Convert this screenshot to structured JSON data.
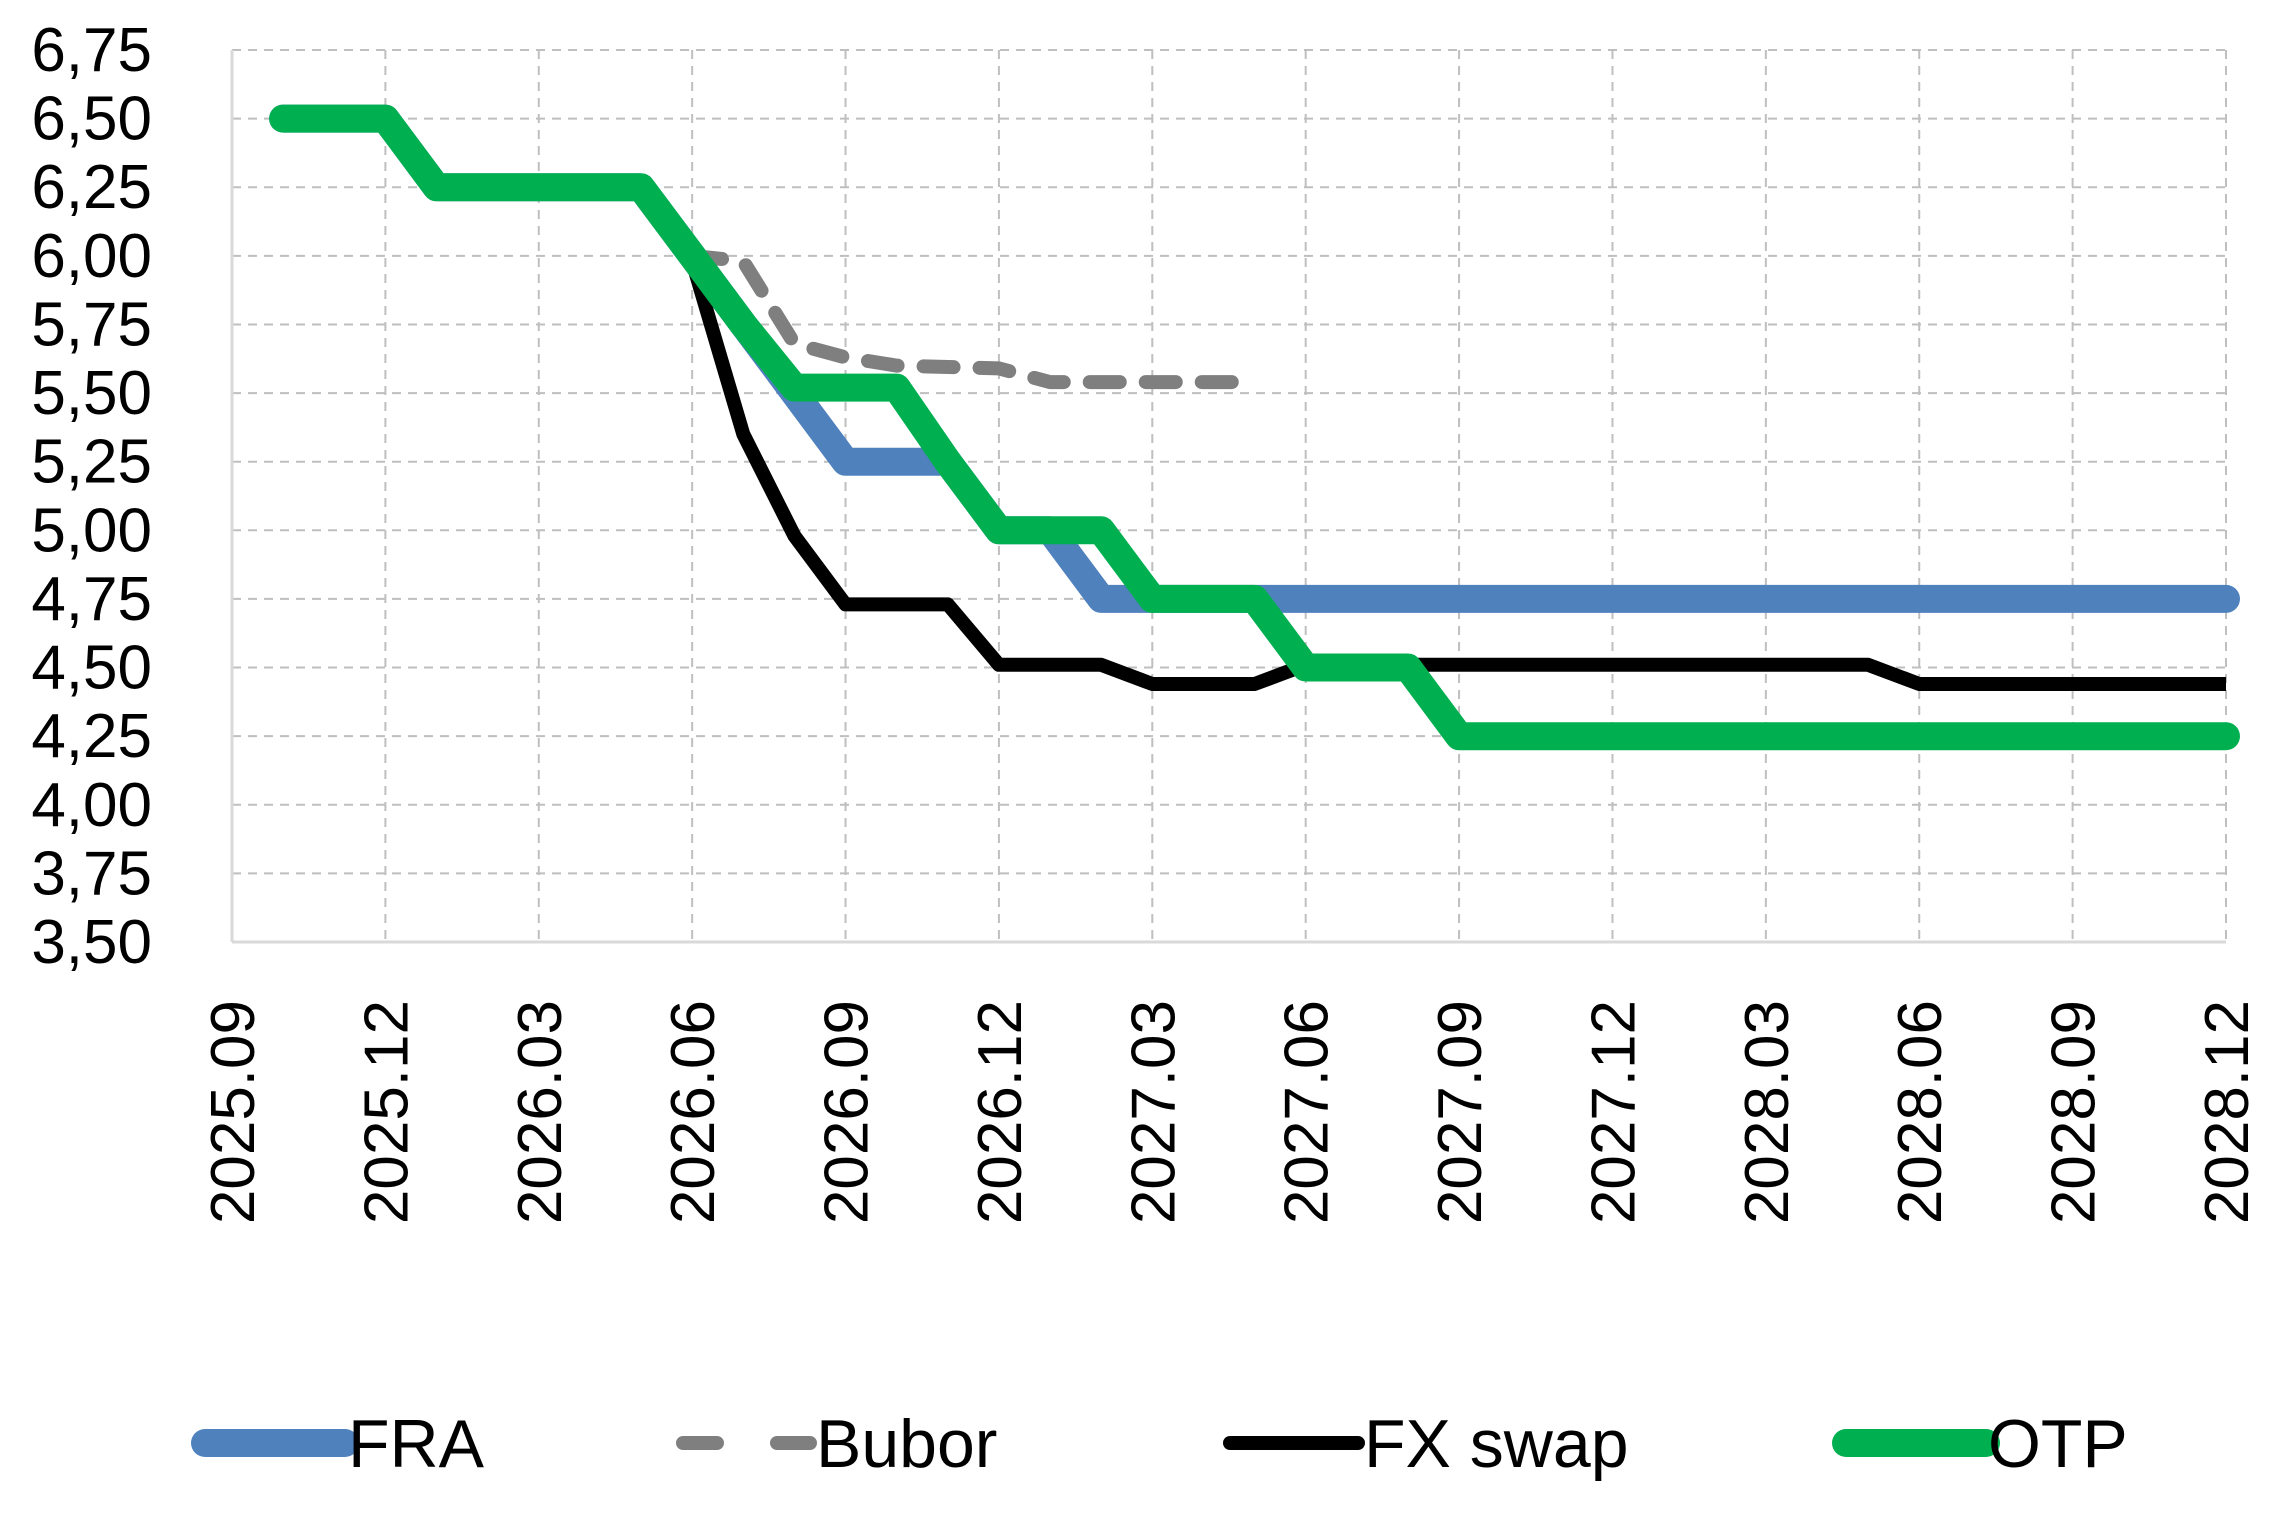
{
  "chart_data": {
    "type": "line",
    "title": "",
    "xlabel": "",
    "ylabel": "",
    "ylim": [
      3.5,
      6.75
    ],
    "y_ticks": [
      "6,75",
      "6,50",
      "6,25",
      "6,00",
      "5,75",
      "5,50",
      "5,25",
      "5,00",
      "4,75",
      "4,50",
      "4,25",
      "4,00",
      "3,75",
      "3,50"
    ],
    "x_ticks": [
      "2025.09",
      "2025.12",
      "2026.03",
      "2026.06",
      "2026.09",
      "2026.12",
      "2027.03",
      "2027.06",
      "2027.09",
      "2027.12",
      "2028.03",
      "2028.06",
      "2028.09",
      "2028.12"
    ],
    "grid": true,
    "legend_position": "bottom",
    "series": [
      {
        "name": "FRA",
        "color": "#4F81BD",
        "style": "solid-thick",
        "points": [
          [
            "2025.10",
            6.5
          ],
          [
            "2025.12",
            6.5
          ],
          [
            "2026.01",
            6.25
          ],
          [
            "2026.02",
            6.25
          ],
          [
            "2026.03",
            6.25
          ],
          [
            "2026.05",
            6.25
          ],
          [
            "2026.06",
            6.0
          ],
          [
            "2026.07",
            5.75
          ],
          [
            "2026.08",
            5.5
          ],
          [
            "2026.09",
            5.25
          ],
          [
            "2026.10",
            5.25
          ],
          [
            "2026.11",
            5.25
          ],
          [
            "2026.12",
            5.0
          ],
          [
            "2027.01",
            5.0
          ],
          [
            "2027.02",
            4.75
          ],
          [
            "2027.03",
            4.75
          ],
          [
            "2027.06",
            4.75
          ],
          [
            "2027.09",
            4.75
          ],
          [
            "2028.03",
            4.75
          ],
          [
            "2028.12",
            4.75
          ]
        ]
      },
      {
        "name": "Bubor",
        "color": "#7F7F7F",
        "style": "dashed",
        "points": [
          [
            "2026.06",
            6.0
          ],
          [
            "2026.07",
            5.98
          ],
          [
            "2026.08",
            5.68
          ],
          [
            "2026.09",
            5.63
          ],
          [
            "2026.10",
            5.6
          ],
          [
            "2026.12",
            5.59
          ],
          [
            "2027.01",
            5.54
          ],
          [
            "2027.03",
            5.54
          ],
          [
            "2027.05",
            5.54
          ]
        ]
      },
      {
        "name": "FX swap",
        "color": "#000000",
        "style": "solid",
        "points": [
          [
            "2026.06",
            5.98
          ],
          [
            "2026.07",
            5.35
          ],
          [
            "2026.08",
            4.98
          ],
          [
            "2026.09",
            4.73
          ],
          [
            "2026.10",
            4.73
          ],
          [
            "2026.11",
            4.73
          ],
          [
            "2026.12",
            4.51
          ],
          [
            "2027.01",
            4.51
          ],
          [
            "2027.02",
            4.51
          ],
          [
            "2027.03",
            4.44
          ],
          [
            "2027.04",
            4.44
          ],
          [
            "2027.05",
            4.44
          ],
          [
            "2027.06",
            4.51
          ],
          [
            "2027.09",
            4.51
          ],
          [
            "2027.12",
            4.51
          ],
          [
            "2028.03",
            4.51
          ],
          [
            "2028.05",
            4.51
          ],
          [
            "2028.06",
            4.44
          ],
          [
            "2028.09",
            4.44
          ],
          [
            "2028.12",
            4.44
          ]
        ]
      },
      {
        "name": "OTP",
        "color": "#00B050",
        "style": "solid-thick",
        "points": [
          [
            "2025.10",
            6.5
          ],
          [
            "2025.12",
            6.5
          ],
          [
            "2026.01",
            6.25
          ],
          [
            "2026.02",
            6.25
          ],
          [
            "2026.03",
            6.25
          ],
          [
            "2026.05",
            6.25
          ],
          [
            "2026.06",
            6.0
          ],
          [
            "2026.07",
            5.75
          ],
          [
            "2026.08",
            5.52
          ],
          [
            "2026.09",
            5.52
          ],
          [
            "2026.10",
            5.52
          ],
          [
            "2026.11",
            5.25
          ],
          [
            "2026.12",
            5.0
          ],
          [
            "2027.01",
            5.0
          ],
          [
            "2027.02",
            5.0
          ],
          [
            "2027.03",
            4.75
          ],
          [
            "2027.04",
            4.75
          ],
          [
            "2027.05",
            4.75
          ],
          [
            "2027.06",
            4.5
          ],
          [
            "2027.07",
            4.5
          ],
          [
            "2027.08",
            4.5
          ],
          [
            "2027.09",
            4.25
          ],
          [
            "2027.12",
            4.25
          ],
          [
            "2028.03",
            4.25
          ],
          [
            "2028.06",
            4.25
          ],
          [
            "2028.09",
            4.25
          ],
          [
            "2028.12",
            4.25
          ]
        ]
      }
    ]
  }
}
